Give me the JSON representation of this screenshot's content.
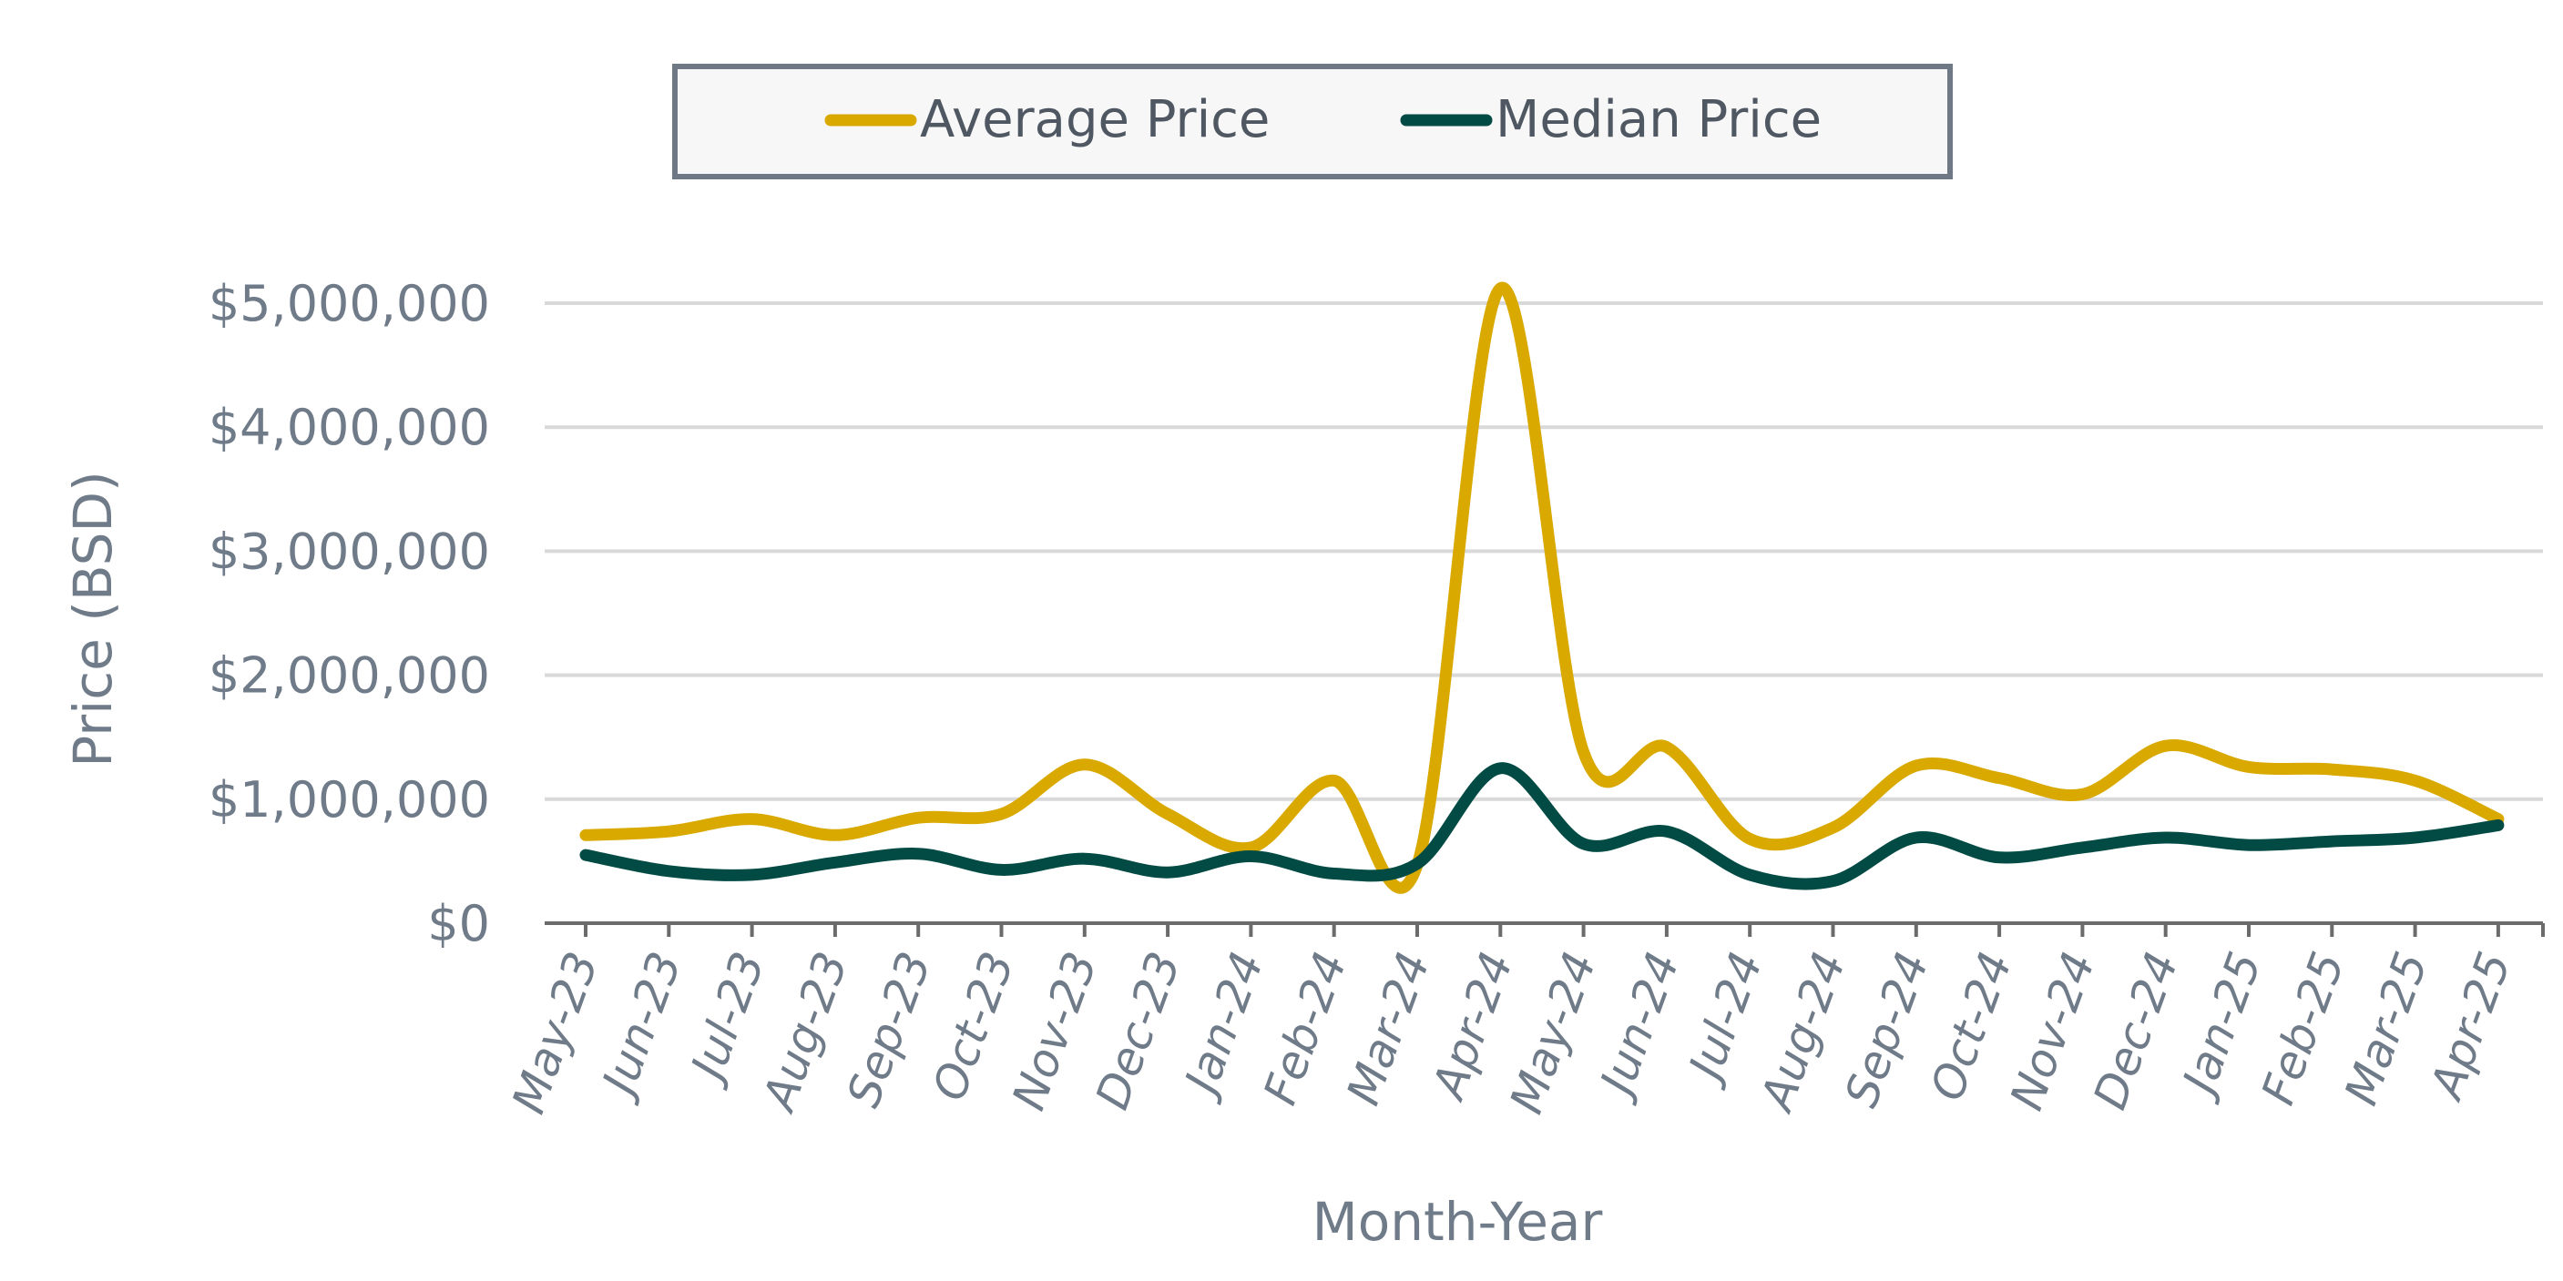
{
  "chart_data": {
    "type": "line",
    "title": "",
    "xlabel": "Month-Year",
    "ylabel": "Price (BSD)",
    "ylim": [
      0,
      5000000
    ],
    "yticks": [
      0,
      1000000,
      2000000,
      3000000,
      4000000,
      5000000
    ],
    "ytick_labels": [
      "$0",
      "$1,000,000",
      "$2,000,000",
      "$3,000,000",
      "$4,000,000",
      "$5,000,000"
    ],
    "grid": true,
    "smooth": true,
    "legend_position": "top-center",
    "categories": [
      "May-23",
      "Jun-23",
      "Jul-23",
      "Aug-23",
      "Sep-23",
      "Oct-23",
      "Nov-23",
      "Dec-23",
      "Jan-24",
      "Feb-24",
      "Mar-24",
      "Apr-24",
      "May-24",
      "Jun-24",
      "Jul-24",
      "Aug-24",
      "Sep-24",
      "Oct-24",
      "Nov-24",
      "Dec-24",
      "Jan-25",
      "Feb-25",
      "Mar-25",
      "Apr-25"
    ],
    "series": [
      {
        "name": "Average Price",
        "color": "#d9a900",
        "values": [
          710000,
          740000,
          840000,
          710000,
          850000,
          880000,
          1280000,
          880000,
          610000,
          1150000,
          470000,
          5120000,
          1380000,
          1420000,
          680000,
          770000,
          1270000,
          1170000,
          1040000,
          1430000,
          1260000,
          1240000,
          1150000,
          840000
        ]
      },
      {
        "name": "Median Price",
        "color": "#024b44",
        "values": [
          550000,
          420000,
          390000,
          490000,
          560000,
          430000,
          520000,
          410000,
          540000,
          400000,
          480000,
          1250000,
          640000,
          740000,
          390000,
          340000,
          690000,
          530000,
          610000,
          690000,
          630000,
          660000,
          690000,
          790000
        ]
      }
    ]
  },
  "legend": {
    "items": [
      {
        "label": "Average Price",
        "color": "#d9a900"
      },
      {
        "label": "Median Price",
        "color": "#024b44"
      }
    ]
  },
  "colors": {
    "grid": "#d9d9d9",
    "axis": "#6b6b6b",
    "text": "#6f7b88",
    "legend_border": "#6f7985",
    "legend_bg": "#f7f7f7"
  }
}
